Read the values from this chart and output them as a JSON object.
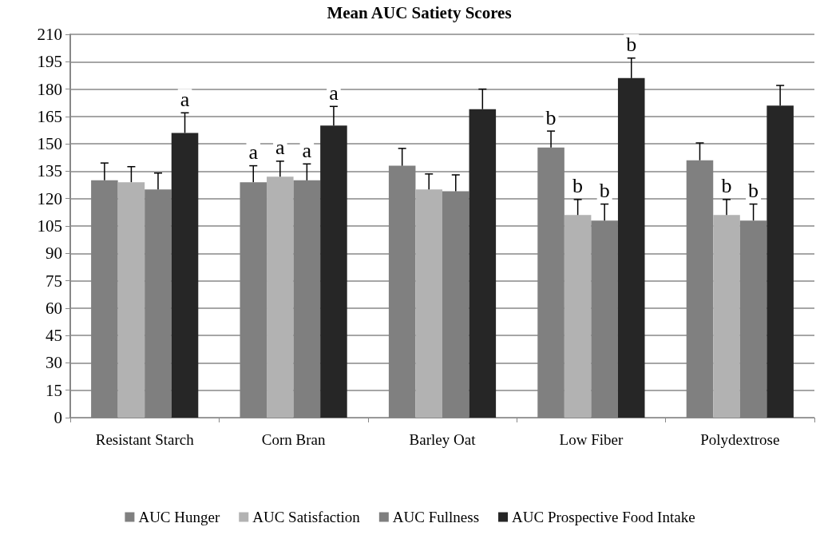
{
  "chart_data": {
    "type": "bar",
    "title": "Mean AUC Satiety Scores",
    "categories": [
      "Resistant Starch",
      "Corn Bran",
      "Barley Oat",
      "Low Fiber",
      "Polydextrose"
    ],
    "series": [
      {
        "name": "AUC Hunger",
        "color": "#808080",
        "values": [
          130,
          129,
          138,
          148,
          141
        ],
        "errors": [
          9.5,
          9,
          9.5,
          9,
          9.5
        ],
        "value_labels": [
          null,
          "a",
          null,
          "b",
          null
        ]
      },
      {
        "name": "AUC Satisfaction",
        "color": "#b2b2b2",
        "values": [
          129,
          132,
          125,
          111,
          111
        ],
        "errors": [
          8.5,
          8.5,
          8.5,
          8.5,
          8.5
        ],
        "value_labels": [
          null,
          "a",
          null,
          "b",
          "b"
        ]
      },
      {
        "name": "AUC Fullness",
        "color": "#7f7f7f",
        "values": [
          125,
          130,
          124,
          108,
          108
        ],
        "errors": [
          9,
          9,
          9,
          9,
          9
        ],
        "value_labels": [
          null,
          "a",
          null,
          "b",
          "b"
        ]
      },
      {
        "name": "AUC Prospective Food Intake",
        "color": "#262626",
        "values": [
          156,
          160,
          169,
          186,
          171
        ],
        "errors": [
          11,
          10.5,
          11,
          11,
          11
        ],
        "value_labels": [
          "a",
          "a",
          null,
          "b",
          null
        ]
      }
    ],
    "ylim": [
      0,
      210
    ],
    "yticks": [
      0,
      15,
      30,
      45,
      60,
      75,
      90,
      105,
      120,
      135,
      150,
      165,
      180,
      195,
      210
    ],
    "grid": "y",
    "legend": "bottom"
  }
}
